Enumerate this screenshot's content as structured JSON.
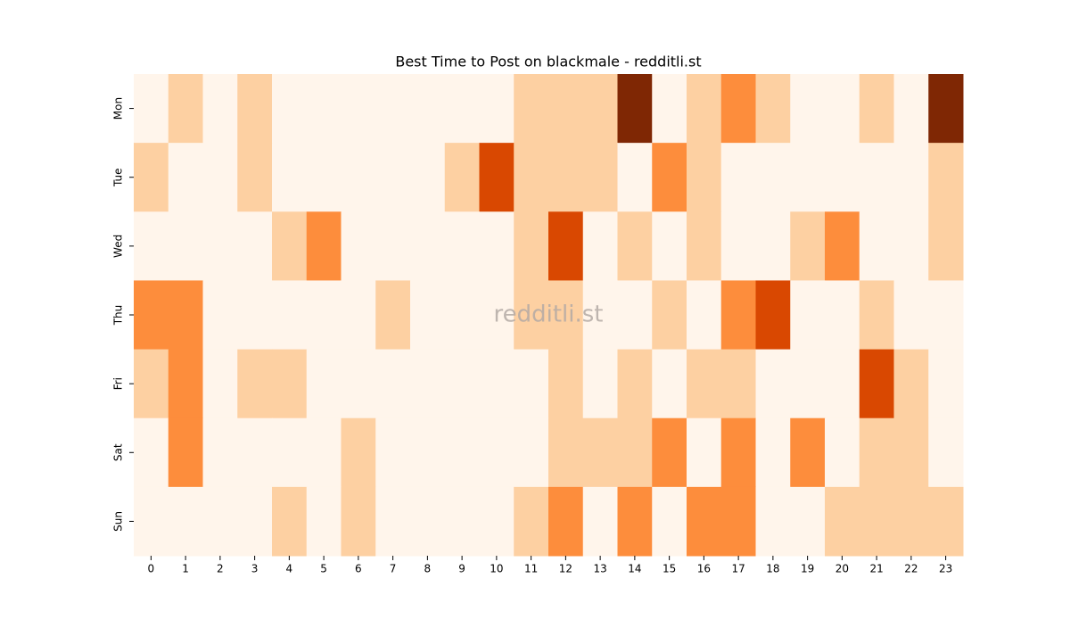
{
  "chart_data": {
    "type": "heatmap",
    "title": "Best Time to Post on blackmale - redditli.st",
    "watermark": "redditli.st",
    "x": [
      0,
      1,
      2,
      3,
      4,
      5,
      6,
      7,
      8,
      9,
      10,
      11,
      12,
      13,
      14,
      15,
      16,
      17,
      18,
      19,
      20,
      21,
      22,
      23
    ],
    "categories": [
      "Mon",
      "Tue",
      "Wed",
      "Thu",
      "Fri",
      "Sat",
      "Sun"
    ],
    "values": [
      [
        0,
        1,
        0,
        1,
        0,
        0,
        0,
        0,
        0,
        0,
        0,
        1,
        1,
        1,
        4,
        0,
        1,
        2,
        1,
        0,
        0,
        1,
        0,
        4
      ],
      [
        1,
        0,
        0,
        1,
        0,
        0,
        0,
        0,
        0,
        1,
        3,
        1,
        1,
        1,
        0,
        2,
        1,
        0,
        0,
        0,
        0,
        0,
        0,
        1
      ],
      [
        0,
        0,
        0,
        0,
        1,
        2,
        0,
        0,
        0,
        0,
        0,
        1,
        3,
        0,
        1,
        0,
        1,
        0,
        0,
        1,
        2,
        0,
        0,
        1
      ],
      [
        2,
        2,
        0,
        0,
        0,
        0,
        0,
        1,
        0,
        0,
        0,
        1,
        1,
        0,
        0,
        1,
        0,
        2,
        3,
        0,
        0,
        1,
        0,
        0
      ],
      [
        1,
        2,
        0,
        1,
        1,
        0,
        0,
        0,
        0,
        0,
        0,
        0,
        1,
        0,
        1,
        0,
        1,
        1,
        0,
        0,
        0,
        3,
        1,
        0
      ],
      [
        0,
        2,
        0,
        0,
        0,
        0,
        1,
        0,
        0,
        0,
        0,
        0,
        1,
        1,
        1,
        2,
        0,
        2,
        0,
        2,
        0,
        1,
        1,
        0
      ],
      [
        0,
        0,
        0,
        0,
        1,
        0,
        1,
        0,
        0,
        0,
        0,
        1,
        2,
        0,
        2,
        0,
        2,
        2,
        0,
        0,
        1,
        1,
        1,
        1
      ]
    ],
    "colors": [
      "#fff5eb",
      "#fdd0a2",
      "#fd8d3c",
      "#d94801",
      "#7f2704"
    ]
  }
}
